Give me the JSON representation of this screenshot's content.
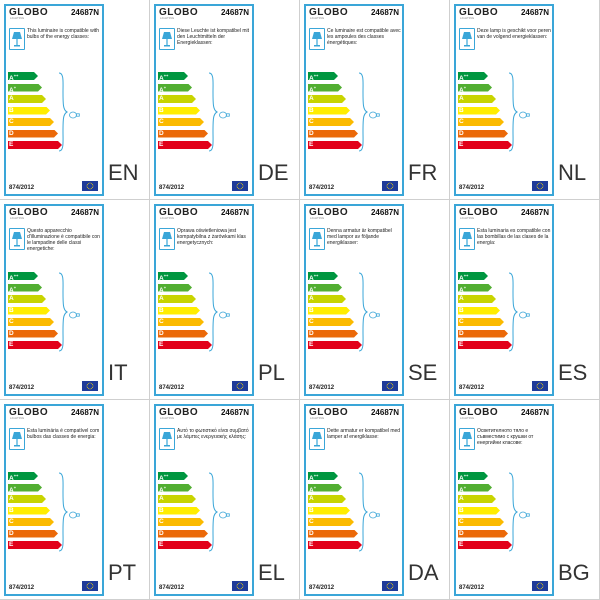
{
  "brand": "GLOBO",
  "brand_sub": "LIGHTING",
  "model": "24687N",
  "regulation": "874/2012",
  "classes": [
    {
      "label": "A",
      "sup": "++",
      "color": "#009640"
    },
    {
      "label": "A",
      "sup": "+",
      "color": "#52ae32"
    },
    {
      "label": "A",
      "sup": "",
      "color": "#c8d400"
    },
    {
      "label": "B",
      "sup": "",
      "color": "#ffed00"
    },
    {
      "label": "C",
      "sup": "",
      "color": "#fbba00"
    },
    {
      "label": "D",
      "sup": "",
      "color": "#eb6909"
    },
    {
      "label": "E",
      "sup": "",
      "color": "#e2001a"
    }
  ],
  "labels": [
    {
      "code": "EN",
      "text": "This luminaire is compatible with bulbs of the energy classes:"
    },
    {
      "code": "DE",
      "text": "Diese Leuchte ist kompatibel mit den Leuchtmitteln der Energieklassen:"
    },
    {
      "code": "FR",
      "text": "Ce luminaire est compatible avec les ampoules des classes énergétiques:"
    },
    {
      "code": "NL",
      "text": "Deze lamp is geschikt voor peren van de volgend energieklassen:"
    },
    {
      "code": "IT",
      "text": "Questo apparecchio d'illuminazione è compatibile con le lampadine delle classi energetiche:"
    },
    {
      "code": "PL",
      "text": "Oprawa oświetleniowa jest kompatybilna z żarówkami klas energetycznych:"
    },
    {
      "code": "SE",
      "text": "Denna armatur är kompatibel med lampor av följande energiklasser:"
    },
    {
      "code": "ES",
      "text": "Esta luminaria es compatible con las bombillas de las clases de la energía:"
    },
    {
      "code": "PT",
      "text": "Esta luminária é compatível com bulbos das classes de energia:"
    },
    {
      "code": "EL",
      "text": "Αυτό το φωτιστικό είναι συμβατό με λάμπες ενεργειακής κλάσης:"
    },
    {
      "code": "DA",
      "text": "Dette armatur er kompatibel med lamper af energiklasse:"
    },
    {
      "code": "BG",
      "text": "Осветителното тяло е съвместимо с крушки от енергийни класове:"
    }
  ]
}
